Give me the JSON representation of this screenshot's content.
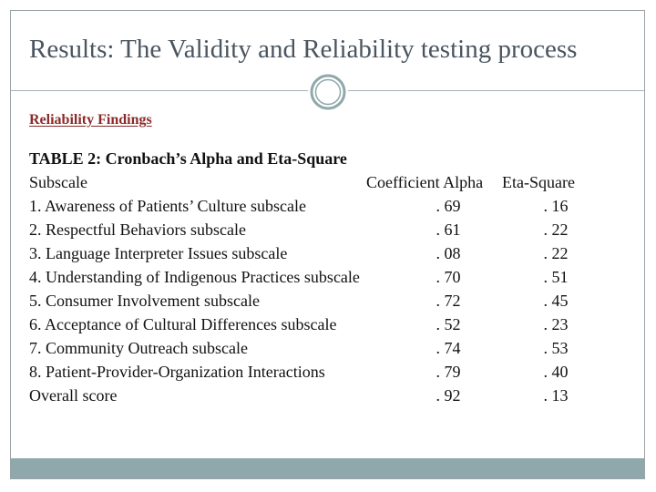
{
  "slide": {
    "title": "Results: The Validity and Reliability testing process",
    "section_heading": "Reliability Findings",
    "table_caption": "TABLE 2: Cronbach’s Alpha and Eta-Square",
    "table": {
      "headers": {
        "subscale": "Subscale",
        "alpha": "Coefficient Alpha",
        "eta": "Eta-Square"
      },
      "rows": [
        {
          "subscale": "1. Awareness of Patients’ Culture subscale",
          "alpha": ". 69",
          "eta": ". 16"
        },
        {
          "subscale": "2. Respectful Behaviors subscale",
          "alpha": ". 61",
          "eta": ". 22"
        },
        {
          "subscale": "3. Language Interpreter Issues subscale",
          "alpha": ". 08",
          "eta": ". 22"
        },
        {
          "subscale": "4. Understanding of Indigenous Practices subscale",
          "alpha": ". 70",
          "eta": ". 51"
        },
        {
          "subscale": "5. Consumer Involvement subscale",
          "alpha": ". 72",
          "eta": ". 45"
        },
        {
          "subscale": "6. Acceptance of Cultural Differences subscale",
          "alpha": ". 52",
          "eta": ". 23"
        },
        {
          "subscale": "7. Community Outreach subscale",
          "alpha": ". 74",
          "eta": ". 53"
        },
        {
          "subscale": "8. Patient-Provider-Organization Interactions",
          "alpha": ". 79",
          "eta": ". 40"
        },
        {
          "subscale": "Overall score",
          "alpha": ". 92",
          "eta": ". 13"
        }
      ]
    }
  },
  "theme": {
    "title_color": "#4a5560",
    "heading_color": "#8b2a2a",
    "footer_color": "#8fa8ab",
    "ornament_icon": "circle-ornament-icon"
  }
}
